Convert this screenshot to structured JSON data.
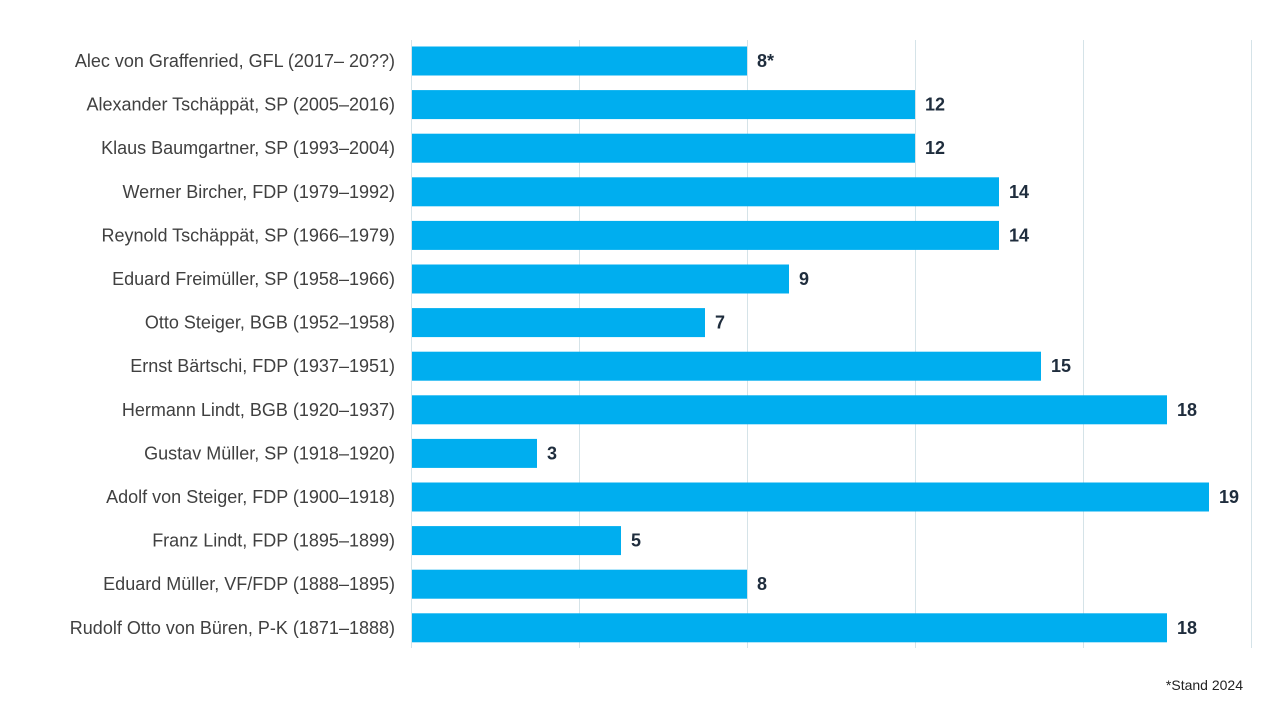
{
  "chart_data": {
    "type": "bar",
    "orientation": "horizontal",
    "categories": [
      "Alec von Graffenried, GFL (2017– 20??)",
      "Alexander Tschäppät, SP (2005–2016)",
      "Klaus Baumgartner, SP (1993–2004)",
      "Werner Bircher, FDP (1979–1992)",
      "Reynold Tschäppät, SP (1966–1979)",
      "Eduard Freimüller, SP (1958–1966)",
      "Otto Steiger, BGB (1952–1958)",
      "Ernst Bärtschi, FDP (1937–1951)",
      "Hermann Lindt, BGB (1920–1937)",
      "Gustav Müller, SP (1918–1920)",
      "Adolf von Steiger, FDP (1900–1918)",
      "Franz Lindt, FDP (1895–1899)",
      "Eduard Müller, VF/FDP (1888–1895)",
      "Rudolf Otto von Büren, P-K (1871–1888)"
    ],
    "values": [
      8,
      12,
      12,
      14,
      14,
      9,
      7,
      15,
      18,
      3,
      19,
      5,
      8,
      18
    ],
    "value_labels": [
      "8*",
      "12",
      "12",
      "14",
      "14",
      "9",
      "7",
      "15",
      "18",
      "3",
      "19",
      "5",
      "8",
      "18"
    ],
    "xlim": [
      0,
      20
    ],
    "grid_step": 4,
    "grid": true,
    "bar_color": "#00aeef",
    "footnote": "*Stand 2024"
  }
}
